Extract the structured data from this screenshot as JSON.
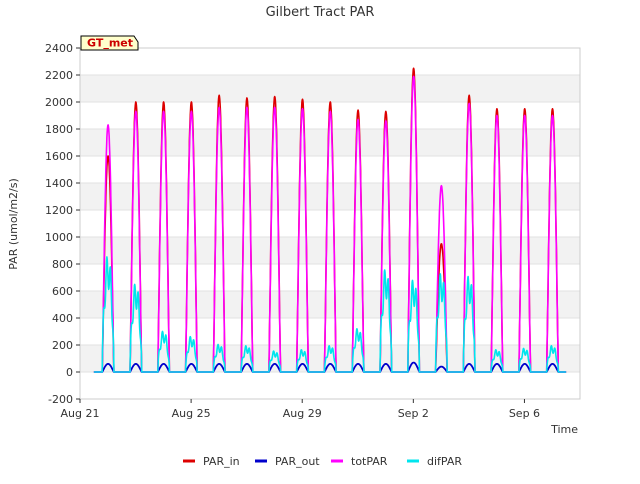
{
  "chart_data": {
    "type": "line",
    "title": "Gilbert Tract PAR",
    "xlabel": "Time",
    "ylabel": "PAR (umol/m2/s)",
    "ylim": [
      -200,
      2400
    ],
    "xlim": [
      0,
      18
    ],
    "y_ticks": [
      -200,
      0,
      200,
      400,
      600,
      800,
      1000,
      1200,
      1400,
      1600,
      1800,
      2000,
      2200,
      2400
    ],
    "x_ticks": [
      {
        "value": 0,
        "label": "Aug 21"
      },
      {
        "value": 4,
        "label": "Aug 25"
      },
      {
        "value": 8,
        "label": "Aug 29"
      },
      {
        "value": 12,
        "label": "Sep 2"
      },
      {
        "value": 16,
        "label": "Sep 6"
      }
    ],
    "x_unit": "days since Aug 21",
    "grid": "horizontal bands",
    "legend_position": "bottom",
    "annotation": "GT_met",
    "series": [
      {
        "name": "PAR_in",
        "color": "#dd0000",
        "day_peaks": [
          1600,
          2000,
          2000,
          2000,
          2050,
          2030,
          2040,
          2020,
          2000,
          1940,
          1930,
          2250,
          950,
          2050,
          1950,
          1950,
          1950
        ]
      },
      {
        "name": "PAR_out",
        "color": "#0000cc",
        "day_peaks": [
          60,
          60,
          60,
          60,
          60,
          60,
          60,
          60,
          60,
          60,
          60,
          70,
          40,
          60,
          60,
          60,
          60
        ]
      },
      {
        "name": "totPAR",
        "color": "#ff00ff",
        "day_peaks": [
          1830,
          1930,
          1930,
          1930,
          1960,
          1960,
          1960,
          1950,
          1930,
          1870,
          1860,
          2190,
          1380,
          1990,
          1900,
          1900,
          1900
        ]
      },
      {
        "name": "difPAR",
        "color": "#00e5ee",
        "day_peaks": [
          880,
          670,
          310,
          270,
          210,
          200,
          160,
          170,
          200,
          330,
          780,
          700,
          750,
          730,
          170,
          180,
          200
        ]
      }
    ]
  }
}
